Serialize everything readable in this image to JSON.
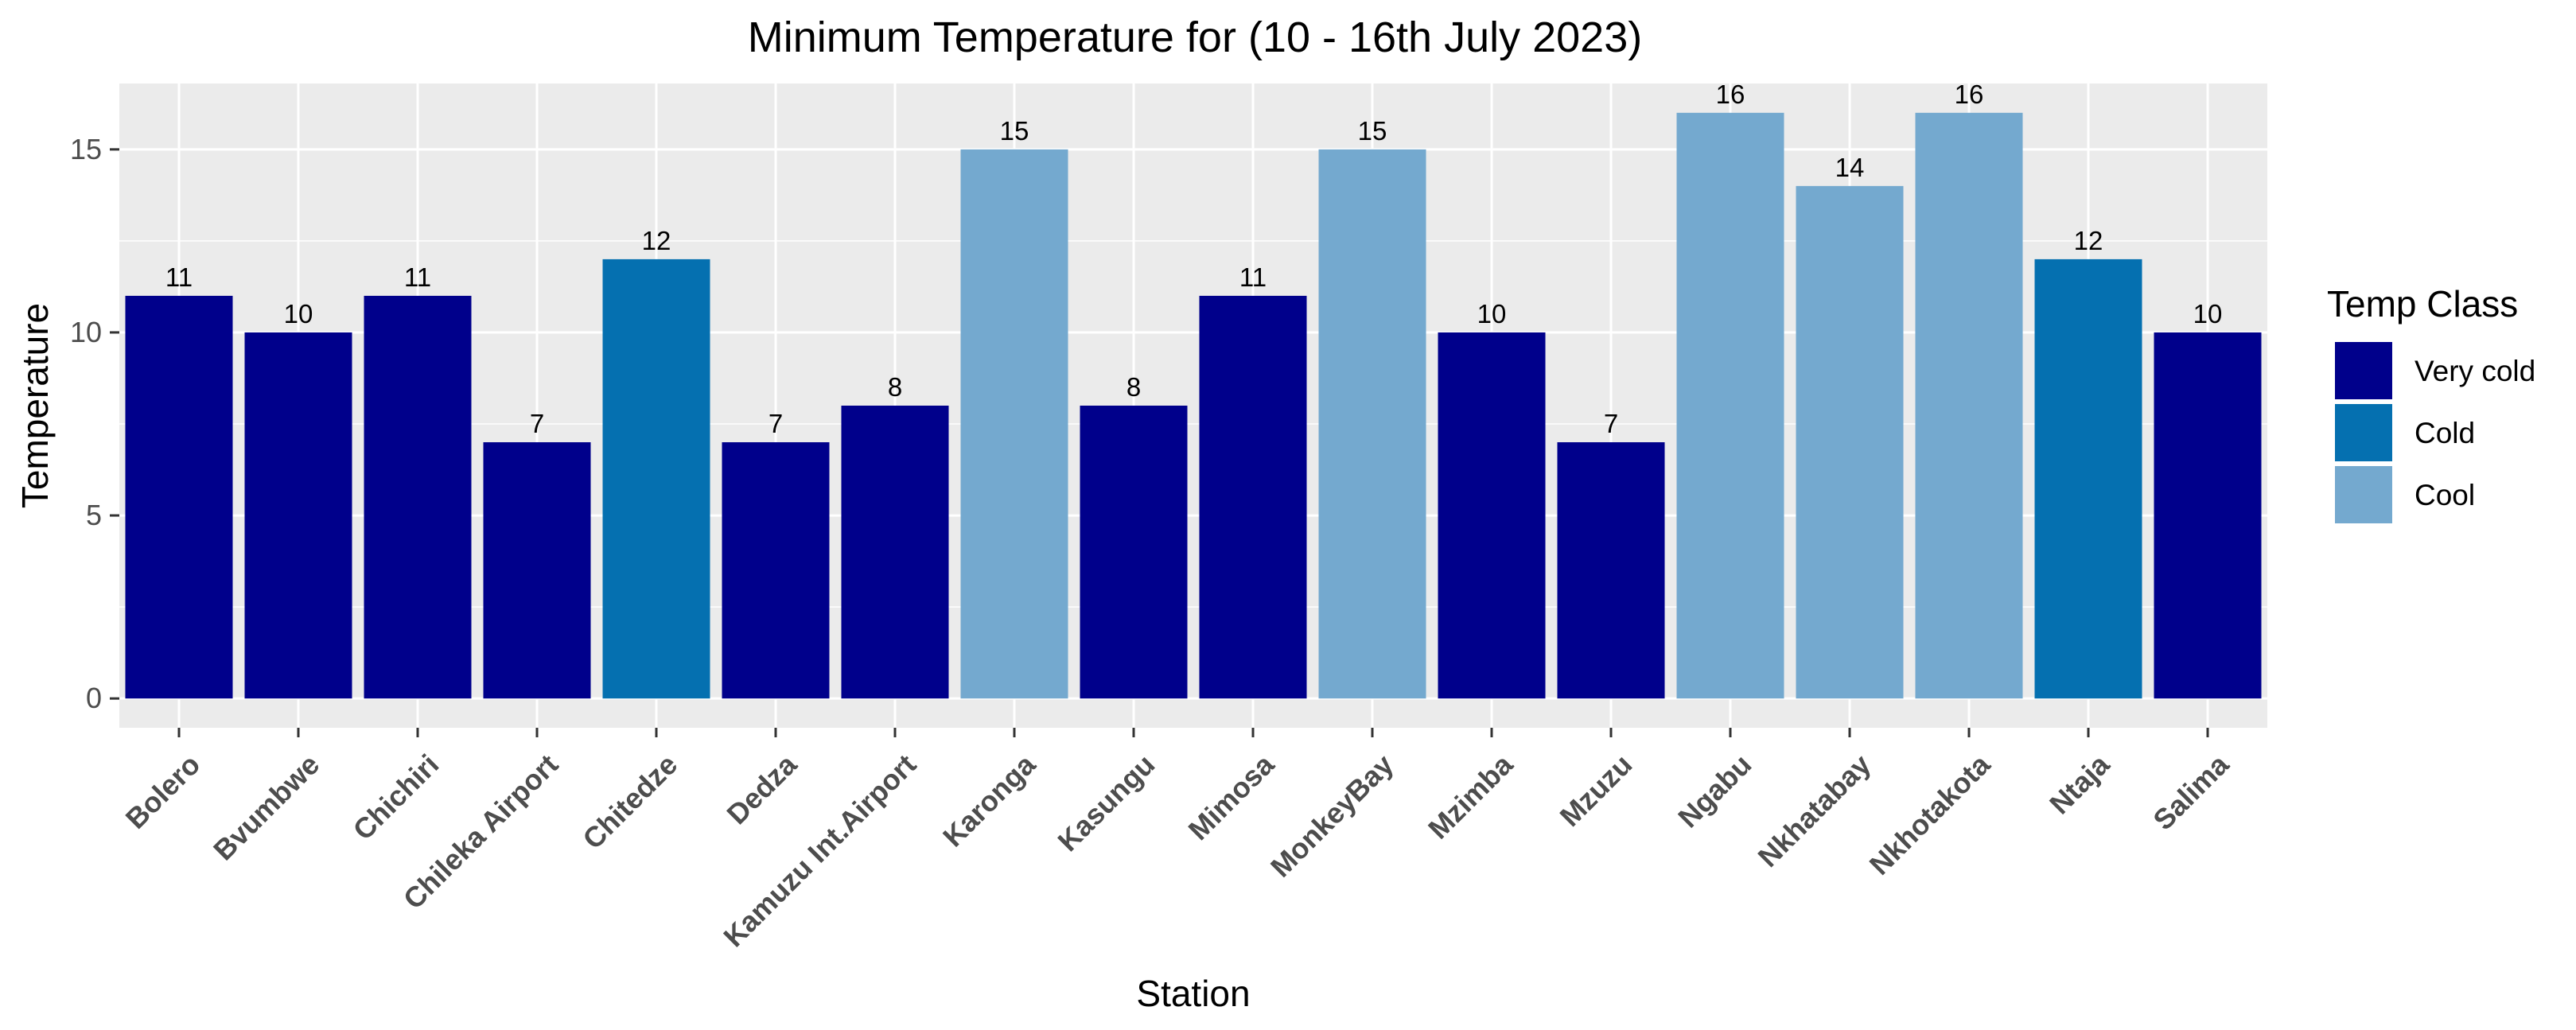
{
  "chart_data": {
    "type": "bar",
    "title": "Minimum Temperature for (10 - 16th July 2023)",
    "xlabel": "Station",
    "ylabel": "Temperature",
    "ylim": [
      0,
      16
    ],
    "yticks": [
      "0",
      "5",
      "10",
      "15"
    ],
    "grid": true,
    "legend_position": "right",
    "legend_title": "Temp Class",
    "classes": [
      {
        "name": "Very cold",
        "color": "#00008B"
      },
      {
        "name": "Cold",
        "color": "#0570B0"
      },
      {
        "name": "Cool",
        "color": "#74A9CF"
      }
    ],
    "categories": [
      "Bolero",
      "Bvumbwe",
      "Chichiri",
      "Chileka Airport",
      "Chitedze",
      "Dedza",
      "Kamuzu Int.Airport",
      "Karonga",
      "Kasungu",
      "Mimosa",
      "MonkeyBay",
      "Mzimba",
      "Mzuzu",
      "Ngabu",
      "Nkhatabay",
      "Nkhotakota",
      "Ntaja",
      "Salima"
    ],
    "values": [
      11,
      10,
      11,
      7,
      12,
      7,
      8,
      15,
      8,
      11,
      15,
      10,
      7,
      16,
      14,
      16,
      12,
      10
    ],
    "bar_labels": [
      "11",
      "10",
      "11",
      "7",
      "12",
      "7",
      "8",
      "15",
      "8",
      "11",
      "15",
      "10",
      "7",
      "16",
      "14",
      "16",
      "12",
      "10"
    ],
    "class_of_bar": [
      "Very cold",
      "Very cold",
      "Very cold",
      "Very cold",
      "Cold",
      "Very cold",
      "Very cold",
      "Cool",
      "Very cold",
      "Very cold",
      "Cool",
      "Very cold",
      "Very cold",
      "Cool",
      "Cool",
      "Cool",
      "Cold",
      "Very cold"
    ],
    "panel_background": "#EBEBEB",
    "grid_color": "#FFFFFF"
  }
}
